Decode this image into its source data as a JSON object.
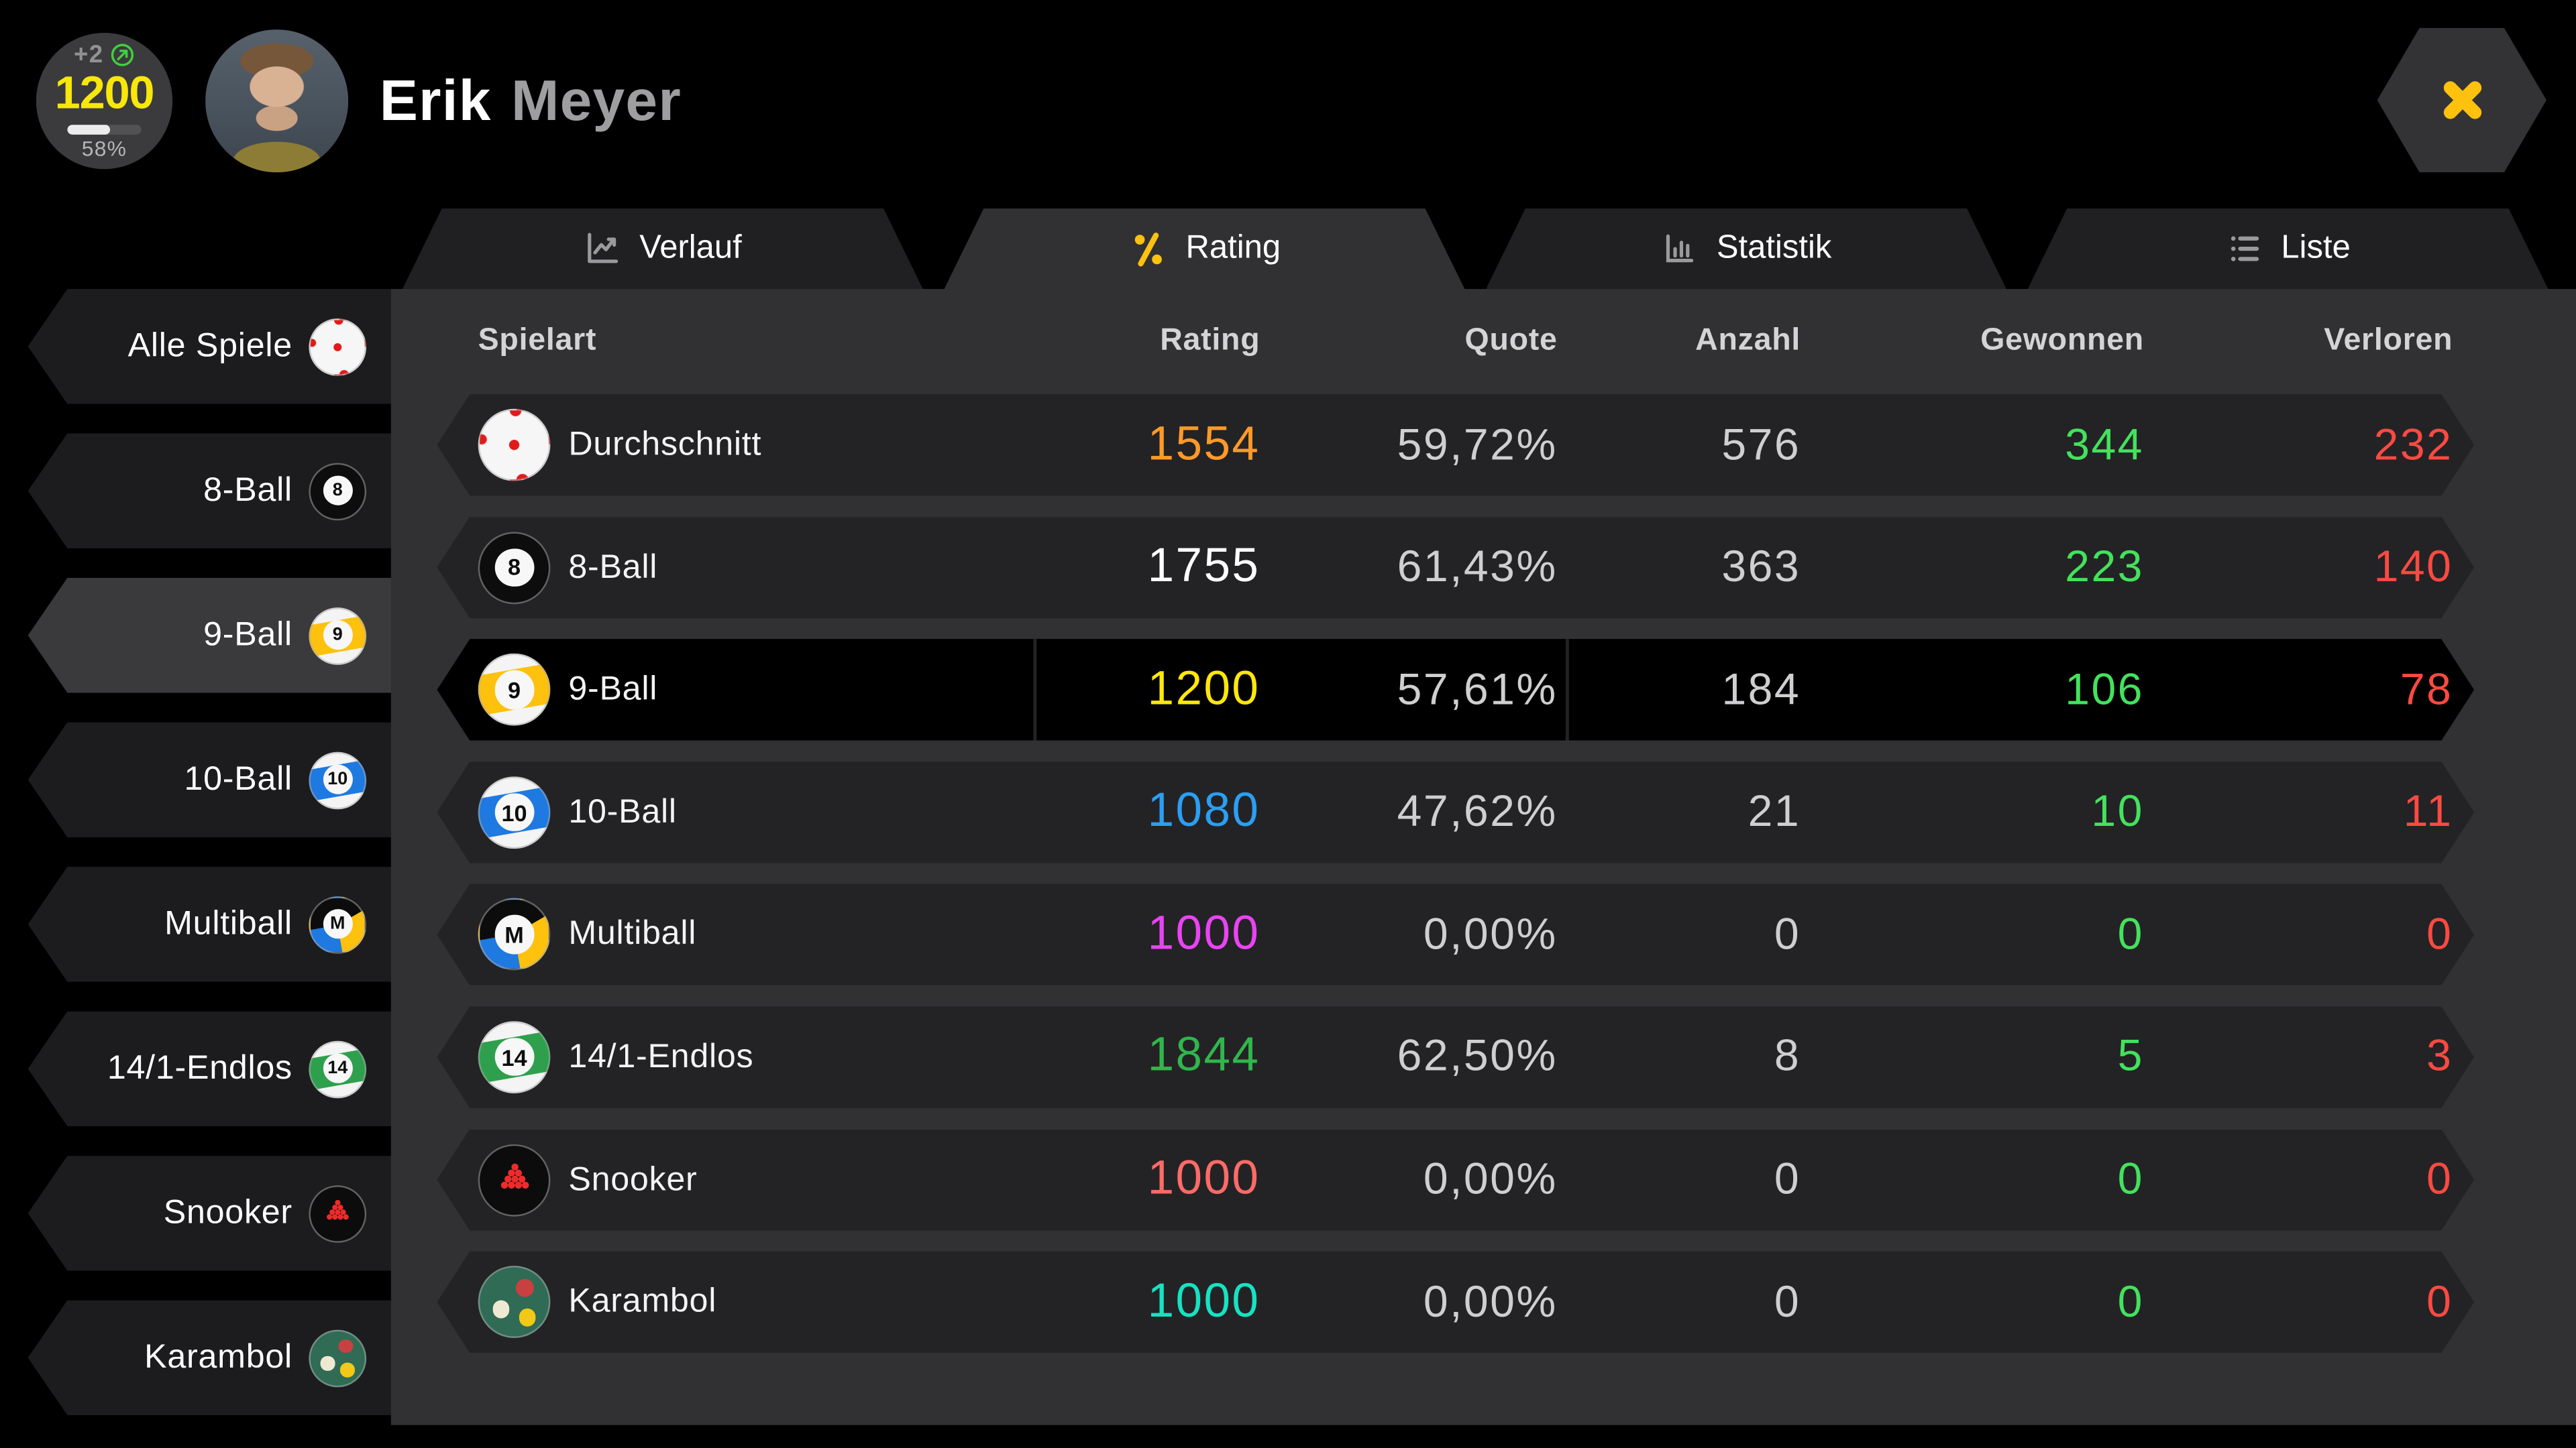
{
  "player": {
    "first_name": "Erik",
    "last_name": "Meyer"
  },
  "badge": {
    "delta": "+2",
    "rating": "1200",
    "percent_label": "58%",
    "percent_value": 58
  },
  "close_label": "close",
  "tabs": [
    {
      "id": "verlauf",
      "label": "Verlauf",
      "icon": "line-chart-icon",
      "active": false
    },
    {
      "id": "rating",
      "label": "Rating",
      "icon": "percent-icon",
      "active": true
    },
    {
      "id": "statistik",
      "label": "Statistik",
      "icon": "bar-chart-icon",
      "active": false
    },
    {
      "id": "liste",
      "label": "Liste",
      "icon": "list-icon",
      "active": false
    }
  ],
  "sidebar": {
    "items": [
      {
        "label": "Alle Spiele",
        "ball": "cue",
        "selected": false
      },
      {
        "label": "8-Ball",
        "ball": "8",
        "selected": false
      },
      {
        "label": "9-Ball",
        "ball": "9",
        "selected": true
      },
      {
        "label": "10-Ball",
        "ball": "10",
        "selected": false
      },
      {
        "label": "Multiball",
        "ball": "multi",
        "selected": false
      },
      {
        "label": "14/1-Endlos",
        "ball": "14",
        "selected": false
      },
      {
        "label": "Snooker",
        "ball": "snooker",
        "selected": false
      },
      {
        "label": "Karambol",
        "ball": "karambol",
        "selected": false
      }
    ]
  },
  "table": {
    "columns": [
      "Spielart",
      "Rating",
      "Quote",
      "Anzahl",
      "Gewonnen",
      "Verloren"
    ],
    "rows": [
      {
        "label": "Durchschnitt",
        "ball": "cue",
        "rating": "1554",
        "rating_color": "#ff9a28",
        "quote": "59,72%",
        "anzahl": "576",
        "gewonnen": "344",
        "verloren": "232",
        "selected": false
      },
      {
        "label": "8-Ball",
        "ball": "8",
        "rating": "1755",
        "rating_color": "#ffffff",
        "quote": "61,43%",
        "anzahl": "363",
        "gewonnen": "223",
        "verloren": "140",
        "selected": false
      },
      {
        "label": "9-Ball",
        "ball": "9",
        "rating": "1200",
        "rating_color": "#ffe70c",
        "quote": "57,61%",
        "anzahl": "184",
        "gewonnen": "106",
        "verloren": "78",
        "selected": true
      },
      {
        "label": "10-Ball",
        "ball": "10",
        "rating": "1080",
        "rating_color": "#2b9ff2",
        "quote": "47,62%",
        "anzahl": "21",
        "gewonnen": "10",
        "verloren": "11",
        "selected": false
      },
      {
        "label": "Multiball",
        "ball": "multi",
        "rating": "1000",
        "rating_color": "#ea43f2",
        "quote": "0,00%",
        "anzahl": "0",
        "gewonnen": "0",
        "verloren": "0",
        "selected": false
      },
      {
        "label": "14/1-Endlos",
        "ball": "14",
        "rating": "1844",
        "rating_color": "#31b64b",
        "quote": "62,50%",
        "anzahl": "8",
        "gewonnen": "5",
        "verloren": "3",
        "selected": false
      },
      {
        "label": "Snooker",
        "ball": "snooker",
        "rating": "1000",
        "rating_color": "#ff6b66",
        "quote": "0,00%",
        "anzahl": "0",
        "gewonnen": "0",
        "verloren": "0",
        "selected": false
      },
      {
        "label": "Karambol",
        "ball": "karambol",
        "rating": "1000",
        "rating_color": "#17e2c1",
        "quote": "0,00%",
        "anzahl": "0",
        "gewonnen": "0",
        "verloren": "0",
        "selected": false
      }
    ]
  },
  "colors": {
    "accent_yellow": "#fdc10e",
    "won_green": "#43e25c",
    "lost_red": "#fb4a41",
    "neutral_value": "#cfcfd1",
    "stripe_9": "#fdc10e",
    "stripe_10": "#1e79e0",
    "stripe_14": "#2ea04d"
  }
}
